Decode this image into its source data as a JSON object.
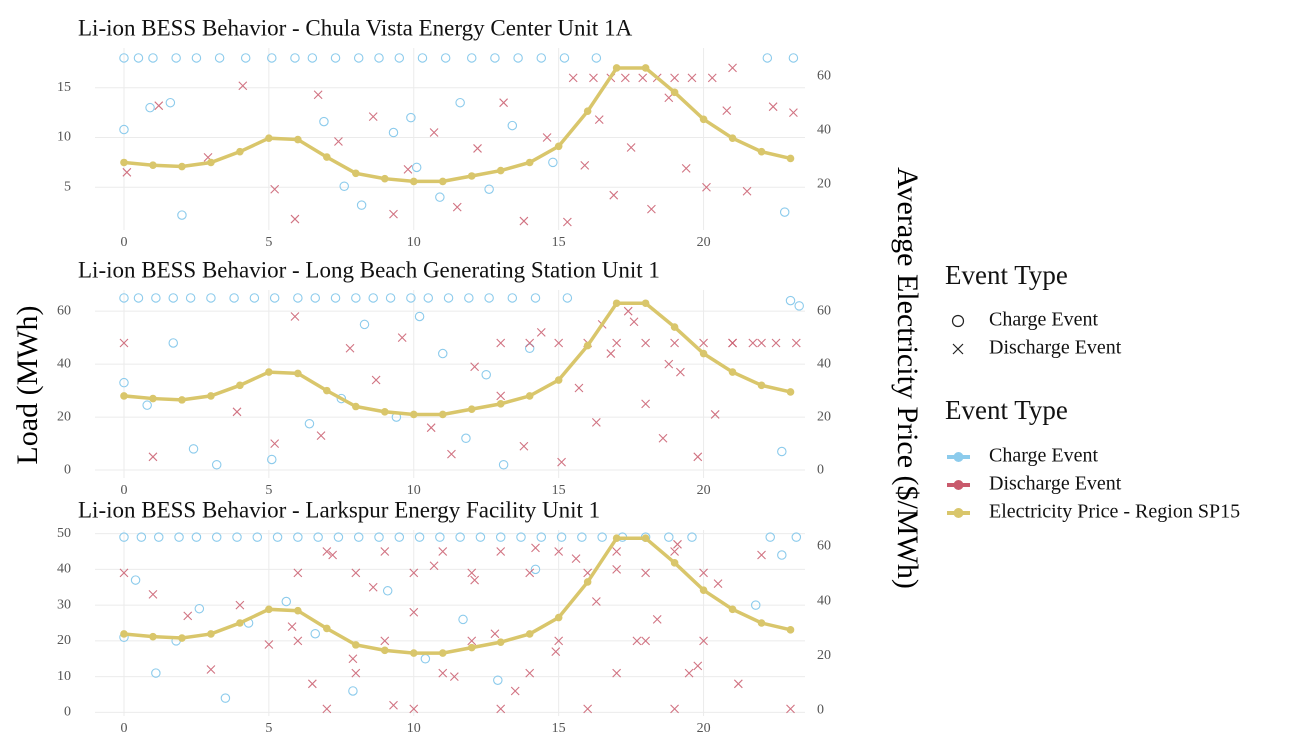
{
  "chart_data": [
    {
      "type": "scatter",
      "title": "Li-ion BESS Behavior - Chula Vista Energy Center Unit 1A",
      "legend_title": "Event Type",
      "xlim": [
        -1,
        23.5
      ],
      "xticks": [
        0,
        5,
        10,
        15,
        20
      ],
      "ylim": [
        0.7,
        19
      ],
      "yticks": [
        5,
        10,
        15
      ],
      "y2lim": [
        3,
        70.4
      ],
      "y2ticks": [
        20,
        40,
        60
      ],
      "grid": true,
      "series": [
        {
          "name": "Charge Event",
          "color": "#8ccbec",
          "marker": "circle",
          "x": [
            0,
            0.5,
            1,
            1.8,
            2.5,
            3.3,
            4.2,
            5.1,
            5.9,
            6.5,
            7.3,
            8.1,
            8.8,
            9.5,
            10.3,
            11.1,
            12.0,
            12.8,
            13.6,
            14.4,
            15.2,
            16.3,
            22.2,
            23.1,
            0,
            0.9,
            1.6,
            2.0,
            6.9,
            8.2,
            9.3,
            10.1,
            10.9,
            11.6,
            12.6,
            13.4,
            14.8,
            7.6,
            9.9,
            22.8
          ],
          "values": [
            18,
            18,
            18,
            18,
            18,
            18,
            18,
            18,
            18,
            18,
            18,
            18,
            18,
            18,
            18,
            18,
            18,
            18,
            18,
            18,
            18,
            18,
            18,
            18,
            10.8,
            13,
            13.5,
            2.2,
            11.6,
            3.2,
            10.5,
            7,
            4,
            13.5,
            4.8,
            11.2,
            7.5,
            5.1,
            12,
            2.5
          ]
        },
        {
          "name": "Discharge Event",
          "color": "#c95a6c",
          "marker": "x",
          "x": [
            0.1,
            1.2,
            2.9,
            4.1,
            5.2,
            5.9,
            6.7,
            7.4,
            8.6,
            9.3,
            9.8,
            10.7,
            11.5,
            12.2,
            13.1,
            13.8,
            14.6,
            15.3,
            15.9,
            16.4,
            16.9,
            17.5,
            18.2,
            18.8,
            19.4,
            20.1,
            20.8,
            21.5,
            22.4,
            23.1,
            15.5,
            16.2,
            16.8,
            17.3,
            17.9,
            18.4,
            19.0,
            19.6,
            20.3,
            21.0
          ],
          "values": [
            6.5,
            13.2,
            8,
            15.2,
            4.8,
            1.8,
            14.3,
            9.6,
            12.1,
            2.3,
            6.8,
            10.5,
            3,
            8.9,
            13.5,
            1.6,
            10,
            1.5,
            7.2,
            11.8,
            4.2,
            9,
            2.8,
            14,
            6.9,
            5,
            12.7,
            4.6,
            13.1,
            12.5,
            16,
            16,
            16,
            16,
            16,
            16,
            16,
            16,
            16,
            17
          ]
        },
        {
          "name": "Electricity Price - Region SP15",
          "color": "#d9c66b",
          "marker": "line",
          "axis": "y2",
          "x": [
            0,
            1,
            2,
            3,
            4,
            5,
            6,
            7,
            8,
            9,
            10,
            11,
            12,
            13,
            14,
            15,
            16,
            17,
            18,
            19,
            20,
            21,
            22,
            23
          ],
          "values": [
            28,
            27,
            26.5,
            28,
            32,
            37,
            36.5,
            30,
            24,
            22,
            21,
            21,
            23,
            25,
            28,
            34,
            47,
            63,
            63,
            54,
            44,
            37,
            32,
            29.5
          ]
        }
      ]
    },
    {
      "type": "scatter",
      "title": "Li-ion BESS Behavior - Long Beach Generating Station Unit 1",
      "ylabel": "Load (MWh)",
      "y2label": "Average Electricity Price ($/MWh)",
      "xlim": [
        -1,
        23.5
      ],
      "xticks": [
        0,
        5,
        10,
        15,
        20
      ],
      "ylim": [
        -3,
        68
      ],
      "yticks": [
        0,
        20,
        40,
        60
      ],
      "y2lim": [
        -3,
        68
      ],
      "y2ticks": [
        0,
        20,
        40,
        60
      ],
      "grid": true,
      "series": [
        {
          "name": "Charge Event",
          "color": "#8ccbec",
          "marker": "circle",
          "x": [
            0,
            0.5,
            1.1,
            1.7,
            2.3,
            3,
            3.8,
            4.5,
            5.2,
            6,
            6.6,
            7.3,
            8,
            8.6,
            9.2,
            9.9,
            10.5,
            11.2,
            11.9,
            12.6,
            13.4,
            14.2,
            15.3,
            23,
            23.3,
            0,
            0.8,
            1.7,
            2.4,
            3.2,
            5.1,
            6.4,
            7.5,
            8.3,
            9.4,
            10.2,
            11,
            11.8,
            12.5,
            13.1,
            14,
            22.7
          ],
          "values": [
            65,
            65,
            65,
            65,
            65,
            65,
            65,
            65,
            65,
            65,
            65,
            65,
            65,
            65,
            65,
            65,
            65,
            65,
            65,
            65,
            65,
            65,
            65,
            64,
            62,
            33,
            24.5,
            48,
            8,
            2,
            4,
            17.5,
            27,
            55,
            20,
            58,
            44,
            12,
            36,
            2,
            46,
            7
          ]
        },
        {
          "name": "Discharge Event",
          "color": "#c95a6c",
          "marker": "x",
          "x": [
            0,
            1,
            3.9,
            5.2,
            5.9,
            6.8,
            7.8,
            8.7,
            9.6,
            10.6,
            11.3,
            12.1,
            13,
            13.8,
            14.4,
            15.1,
            15.7,
            16.3,
            16.8,
            17.4,
            18,
            18.6,
            19.2,
            19.8,
            20.4,
            21,
            21.7,
            22.5,
            23.2,
            13,
            14,
            15,
            16,
            17,
            18,
            19,
            20,
            21,
            22,
            16.5,
            17.6,
            18.8
          ],
          "values": [
            48,
            5,
            22,
            10,
            58,
            13,
            46,
            34,
            50,
            16,
            6,
            39,
            28,
            9,
            52,
            3,
            31,
            18,
            44,
            60,
            25,
            12,
            37,
            5,
            21,
            48,
            48,
            48,
            48,
            48,
            48,
            48,
            48,
            48,
            48,
            48,
            48,
            48,
            48,
            55,
            56,
            40
          ]
        },
        {
          "name": "Electricity Price - Region SP15",
          "color": "#d9c66b",
          "marker": "line",
          "axis": "y2",
          "x": [
            0,
            1,
            2,
            3,
            4,
            5,
            6,
            7,
            8,
            9,
            10,
            11,
            12,
            13,
            14,
            15,
            16,
            17,
            18,
            19,
            20,
            21,
            22,
            23
          ],
          "values": [
            28,
            27,
            26.5,
            28,
            32,
            37,
            36.5,
            30,
            24,
            22,
            21,
            21,
            23,
            25,
            28,
            34,
            47,
            63,
            63,
            54,
            44,
            37,
            32,
            29.5
          ]
        }
      ]
    },
    {
      "type": "scatter",
      "title": "Li-ion BESS Behavior - Larkspur Energy Facility Unit 1",
      "xlim": [
        -1,
        23.5
      ],
      "xticks": [
        0,
        5,
        10,
        15,
        20
      ],
      "ylim": [
        -1,
        51
      ],
      "yticks": [
        0,
        10,
        20,
        30,
        40,
        50
      ],
      "y2lim": [
        -2,
        66
      ],
      "y2ticks": [
        0,
        20,
        40,
        60
      ],
      "grid": true,
      "series": [
        {
          "name": "Charge Event",
          "color": "#8ccbec",
          "marker": "circle",
          "x": [
            0,
            0.6,
            1.2,
            1.9,
            2.5,
            3.2,
            3.9,
            4.6,
            5.3,
            6,
            6.7,
            7.4,
            8.1,
            8.8,
            9.5,
            10.2,
            10.9,
            11.6,
            12.3,
            13,
            13.7,
            14.4,
            15.1,
            15.8,
            16.5,
            17.2,
            18,
            18.8,
            19.6,
            22.3,
            23.2,
            0,
            0.4,
            1.1,
            1.8,
            2.6,
            3.5,
            4.3,
            5.6,
            6.6,
            7.9,
            9.1,
            10.4,
            11.7,
            12.9,
            14.2,
            21.8,
            22.7
          ],
          "values": [
            49,
            49,
            49,
            49,
            49,
            49,
            49,
            49,
            49,
            49,
            49,
            49,
            49,
            49,
            49,
            49,
            49,
            49,
            49,
            49,
            49,
            49,
            49,
            49,
            49,
            49,
            49,
            49,
            49,
            49,
            49,
            21,
            37,
            11,
            20,
            29,
            4,
            25,
            31,
            22,
            6,
            34,
            15,
            26,
            9,
            40,
            30,
            44
          ]
        },
        {
          "name": "Discharge Event",
          "color": "#c95a6c",
          "marker": "x",
          "x": [
            0,
            1,
            2.2,
            3,
            4,
            5,
            5.8,
            6.5,
            7.2,
            7.9,
            8.6,
            9.3,
            10,
            10.7,
            11.4,
            12.1,
            12.8,
            13.5,
            14.2,
            14.9,
            15.6,
            16.3,
            17,
            17.7,
            18.4,
            19.1,
            19.8,
            20.5,
            21.2,
            22,
            23,
            6,
            8,
            10,
            12,
            14,
            16,
            18,
            20,
            7,
            9,
            11,
            13,
            15,
            17,
            19,
            6,
            9,
            12,
            15,
            18,
            20,
            7,
            10,
            13,
            16,
            19,
            8,
            11,
            14,
            17,
            19.5
          ],
          "values": [
            39,
            33,
            27,
            12,
            30,
            19,
            24,
            8,
            44,
            15,
            35,
            2,
            28,
            41,
            10,
            37,
            22,
            6,
            46,
            17,
            43,
            31,
            40,
            20,
            26,
            47,
            13,
            36,
            8,
            44,
            1,
            39,
            39,
            39,
            39,
            39,
            39,
            39,
            39,
            45,
            45,
            45,
            45,
            45,
            45,
            45,
            20,
            20,
            20,
            20,
            20,
            20,
            1,
            1,
            1,
            1,
            1,
            11,
            11,
            11,
            11,
            11
          ]
        },
        {
          "name": "Electricity Price - Region SP15",
          "color": "#d9c66b",
          "marker": "line",
          "axis": "y2",
          "x": [
            0,
            1,
            2,
            3,
            4,
            5,
            6,
            7,
            8,
            9,
            10,
            11,
            12,
            13,
            14,
            15,
            16,
            17,
            18,
            19,
            20,
            21,
            22,
            23
          ],
          "values": [
            28,
            27,
            26.5,
            28,
            32,
            37,
            36.5,
            30,
            24,
            22,
            21,
            21,
            23,
            25,
            28,
            34,
            47,
            63,
            63,
            54,
            44,
            37,
            32,
            29.5
          ]
        }
      ]
    }
  ]
}
